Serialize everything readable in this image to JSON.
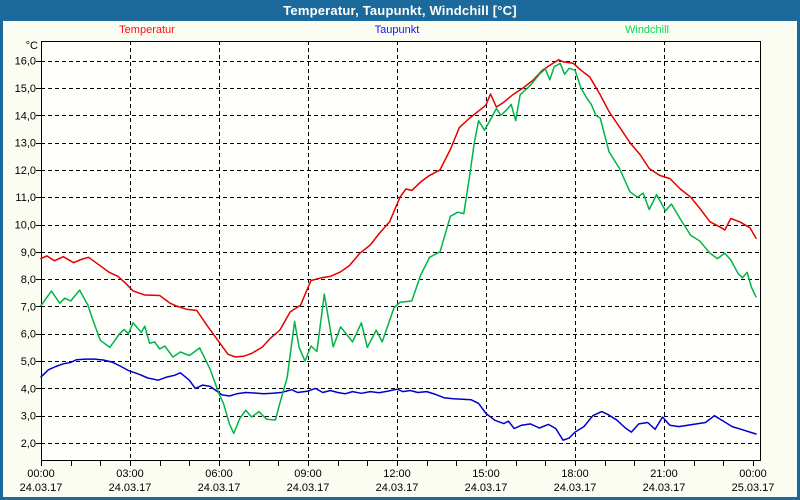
{
  "window": {
    "title": "Temperatur, Taupunkt, Windchill [°C]"
  },
  "colors": {
    "titlebar_bg": "#1c6a9c",
    "titlebar_text": "#ffffff",
    "frame": "#1c6a9c",
    "window_bg": "#fbfdf2",
    "plot_bg": "#fffffc",
    "grid": "#000000",
    "axis": "#000000"
  },
  "legend": {
    "items": [
      {
        "label": "Temperatur",
        "color": "#ff1010"
      },
      {
        "label": "Taupunkt",
        "color": "#1515ff"
      },
      {
        "label": "Windchill",
        "color": "#00dd55"
      }
    ]
  },
  "chart_data": {
    "type": "line",
    "title": "Temperatur, Taupunkt, Windchill [°C]",
    "unit_label": "°C",
    "grid": "dashed",
    "legend_position": "top",
    "y_axis": {
      "min": 1.34,
      "max": 16.72,
      "ticks": [
        {
          "value": 16,
          "label": "16,0"
        },
        {
          "value": 15,
          "label": "15,0"
        },
        {
          "value": 14,
          "label": "14,0"
        },
        {
          "value": 13,
          "label": "13,0"
        },
        {
          "value": 12,
          "label": "12,0"
        },
        {
          "value": 11,
          "label": "11,0"
        },
        {
          "value": 10,
          "label": "10,0"
        },
        {
          "value": 9,
          "label": "9,0"
        },
        {
          "value": 8,
          "label": "8,0"
        },
        {
          "value": 7,
          "label": "7,0"
        },
        {
          "value": 6,
          "label": "6,0"
        },
        {
          "value": 5,
          "label": "5,0"
        },
        {
          "value": 4,
          "label": "4,0"
        },
        {
          "value": 3,
          "label": "3,0"
        },
        {
          "value": 2,
          "label": "2,0"
        }
      ]
    },
    "x_axis": {
      "hours_span": 24.27,
      "minor_tick_every_hours": 1,
      "gridline_hours": [
        3,
        6,
        9,
        12,
        15,
        18,
        21
      ],
      "major_ticks": [
        {
          "hour": 0,
          "time": "00:00",
          "date": "24.03.17"
        },
        {
          "hour": 3,
          "time": "03:00",
          "date": "24.03.17"
        },
        {
          "hour": 6,
          "time": "06:00",
          "date": "24.03.17"
        },
        {
          "hour": 9,
          "time": "09:00",
          "date": "24.03.17"
        },
        {
          "hour": 12,
          "time": "12:00",
          "date": "24.03.17"
        },
        {
          "hour": 15,
          "time": "15:00",
          "date": "24.03.17"
        },
        {
          "hour": 18,
          "time": "18:00",
          "date": "24.03.17"
        },
        {
          "hour": 21,
          "time": "21:00",
          "date": "24.03.17"
        },
        {
          "hour": 24,
          "time": "00:00",
          "date": "25.03.17"
        }
      ]
    },
    "series": [
      {
        "name": "Temperatur",
        "color": "#e30000",
        "points": [
          [
            0,
            8.75
          ],
          [
            0.2,
            8.85
          ],
          [
            0.45,
            8.67
          ],
          [
            0.75,
            8.82
          ],
          [
            1.1,
            8.6
          ],
          [
            1.35,
            8.72
          ],
          [
            1.6,
            8.8
          ],
          [
            1.95,
            8.53
          ],
          [
            2.3,
            8.25
          ],
          [
            2.6,
            8.1
          ],
          [
            2.85,
            7.85
          ],
          [
            3.1,
            7.57
          ],
          [
            3.5,
            7.42
          ],
          [
            4,
            7.4
          ],
          [
            4.35,
            7.12
          ],
          [
            4.6,
            7
          ],
          [
            4.9,
            6.9
          ],
          [
            5.25,
            6.85
          ],
          [
            5.6,
            6.3
          ],
          [
            6,
            5.7
          ],
          [
            6.3,
            5.25
          ],
          [
            6.55,
            5.15
          ],
          [
            6.85,
            5.18
          ],
          [
            7.1,
            5.28
          ],
          [
            7.45,
            5.5
          ],
          [
            7.75,
            5.85
          ],
          [
            8.05,
            6.13
          ],
          [
            8.4,
            6.8
          ],
          [
            8.75,
            7.05
          ],
          [
            9.1,
            7.95
          ],
          [
            9.45,
            8.05
          ],
          [
            9.75,
            8.1
          ],
          [
            10.1,
            8.27
          ],
          [
            10.4,
            8.5
          ],
          [
            10.75,
            8.95
          ],
          [
            11.1,
            9.25
          ],
          [
            11.4,
            9.67
          ],
          [
            11.75,
            10.1
          ],
          [
            12.1,
            11
          ],
          [
            12.3,
            11.3
          ],
          [
            12.5,
            11.25
          ],
          [
            12.8,
            11.56
          ],
          [
            13.1,
            11.8
          ],
          [
            13.45,
            12
          ],
          [
            13.8,
            12.75
          ],
          [
            14.1,
            13.55
          ],
          [
            14.45,
            13.9
          ],
          [
            14.8,
            14.2
          ],
          [
            15,
            14.38
          ],
          [
            15.15,
            14.78
          ],
          [
            15.35,
            14.3
          ],
          [
            15.6,
            14.48
          ],
          [
            15.9,
            14.75
          ],
          [
            16.25,
            15
          ],
          [
            16.6,
            15.3
          ],
          [
            16.9,
            15.65
          ],
          [
            17.25,
            15.9
          ],
          [
            17.45,
            16.03
          ],
          [
            17.6,
            15.96
          ],
          [
            17.95,
            15.9
          ],
          [
            18.2,
            15.65
          ],
          [
            18.5,
            15.4
          ],
          [
            18.85,
            14.75
          ],
          [
            19.15,
            14.13
          ],
          [
            19.5,
            13.57
          ],
          [
            19.85,
            13
          ],
          [
            20.2,
            12.55
          ],
          [
            20.5,
            12.05
          ],
          [
            20.85,
            11.8
          ],
          [
            21.2,
            11.68
          ],
          [
            21.55,
            11.3
          ],
          [
            21.9,
            11
          ],
          [
            22.2,
            10.6
          ],
          [
            22.55,
            10.1
          ],
          [
            22.9,
            9.9
          ],
          [
            23.05,
            9.8
          ],
          [
            23.25,
            10.22
          ],
          [
            23.55,
            10.1
          ],
          [
            23.9,
            9.88
          ],
          [
            24.1,
            9.5
          ]
        ]
      },
      {
        "name": "Taupunkt",
        "color": "#0000cd",
        "points": [
          [
            0,
            4.42
          ],
          [
            0.25,
            4.68
          ],
          [
            0.5,
            4.8
          ],
          [
            0.75,
            4.9
          ],
          [
            1,
            4.95
          ],
          [
            1.2,
            5.05
          ],
          [
            1.5,
            5.07
          ],
          [
            1.8,
            5.07
          ],
          [
            2.1,
            5.04
          ],
          [
            2.4,
            4.96
          ],
          [
            2.7,
            4.8
          ],
          [
            2.95,
            4.65
          ],
          [
            3.3,
            4.52
          ],
          [
            3.6,
            4.38
          ],
          [
            3.95,
            4.3
          ],
          [
            4.2,
            4.4
          ],
          [
            4.5,
            4.48
          ],
          [
            4.7,
            4.57
          ],
          [
            5,
            4.3
          ],
          [
            5.2,
            4
          ],
          [
            5.45,
            4.12
          ],
          [
            5.7,
            4.07
          ],
          [
            5.95,
            3.88
          ],
          [
            6.1,
            3.76
          ],
          [
            6.35,
            3.72
          ],
          [
            6.6,
            3.8
          ],
          [
            6.9,
            3.85
          ],
          [
            7.2,
            3.83
          ],
          [
            7.5,
            3.8
          ],
          [
            7.8,
            3.82
          ],
          [
            8.1,
            3.85
          ],
          [
            8.45,
            3.95
          ],
          [
            8.65,
            3.85
          ],
          [
            9,
            3.9
          ],
          [
            9.25,
            4
          ],
          [
            9.5,
            3.85
          ],
          [
            9.75,
            3.92
          ],
          [
            10,
            3.85
          ],
          [
            10.25,
            3.8
          ],
          [
            10.5,
            3.88
          ],
          [
            10.8,
            3.82
          ],
          [
            11.1,
            3.88
          ],
          [
            11.4,
            3.84
          ],
          [
            11.7,
            3.9
          ],
          [
            12,
            3.97
          ],
          [
            12.2,
            3.88
          ],
          [
            12.45,
            3.92
          ],
          [
            12.7,
            3.85
          ],
          [
            13,
            3.88
          ],
          [
            13.3,
            3.78
          ],
          [
            13.6,
            3.65
          ],
          [
            13.9,
            3.62
          ],
          [
            14.2,
            3.6
          ],
          [
            14.5,
            3.58
          ],
          [
            14.75,
            3.45
          ],
          [
            15,
            3.08
          ],
          [
            15.3,
            2.83
          ],
          [
            15.6,
            2.71
          ],
          [
            15.75,
            2.8
          ],
          [
            15.95,
            2.53
          ],
          [
            16.2,
            2.65
          ],
          [
            16.5,
            2.7
          ],
          [
            16.8,
            2.55
          ],
          [
            17.1,
            2.68
          ],
          [
            17.35,
            2.53
          ],
          [
            17.6,
            2.1
          ],
          [
            17.8,
            2.18
          ],
          [
            18,
            2.4
          ],
          [
            18.3,
            2.6
          ],
          [
            18.6,
            3
          ],
          [
            18.9,
            3.15
          ],
          [
            19.1,
            3.05
          ],
          [
            19.4,
            2.85
          ],
          [
            19.7,
            2.55
          ],
          [
            19.9,
            2.4
          ],
          [
            20.15,
            2.7
          ],
          [
            20.45,
            2.75
          ],
          [
            20.7,
            2.5
          ],
          [
            20.95,
            2.95
          ],
          [
            21.2,
            2.65
          ],
          [
            21.5,
            2.6
          ],
          [
            21.8,
            2.65
          ],
          [
            22.1,
            2.7
          ],
          [
            22.4,
            2.75
          ],
          [
            22.7,
            3
          ],
          [
            23,
            2.8
          ],
          [
            23.3,
            2.6
          ],
          [
            23.6,
            2.5
          ],
          [
            23.9,
            2.4
          ],
          [
            24.1,
            2.33
          ]
        ]
      },
      {
        "name": "Windchill",
        "color": "#00b44a",
        "points": [
          [
            0,
            7.03
          ],
          [
            0.35,
            7.56
          ],
          [
            0.63,
            7.12
          ],
          [
            0.8,
            7.3
          ],
          [
            1,
            7.2
          ],
          [
            1.3,
            7.6
          ],
          [
            1.58,
            7.05
          ],
          [
            1.75,
            6.5
          ],
          [
            2,
            5.76
          ],
          [
            2.32,
            5.5
          ],
          [
            2.65,
            6
          ],
          [
            2.8,
            6.16
          ],
          [
            2.95,
            6
          ],
          [
            3.1,
            6.4
          ],
          [
            3.38,
            6.05
          ],
          [
            3.5,
            6.28
          ],
          [
            3.66,
            5.65
          ],
          [
            3.83,
            5.7
          ],
          [
            4,
            5.44
          ],
          [
            4.17,
            5.55
          ],
          [
            4.45,
            5.15
          ],
          [
            4.7,
            5.33
          ],
          [
            5,
            5.2
          ],
          [
            5.35,
            5.48
          ],
          [
            5.7,
            4.7
          ],
          [
            6,
            3.8
          ],
          [
            6.15,
            3.45
          ],
          [
            6.35,
            2.7
          ],
          [
            6.5,
            2.35
          ],
          [
            6.7,
            2.9
          ],
          [
            6.9,
            3.2
          ],
          [
            7.1,
            2.95
          ],
          [
            7.35,
            3.15
          ],
          [
            7.6,
            2.87
          ],
          [
            7.9,
            2.84
          ],
          [
            8.05,
            3.45
          ],
          [
            8.3,
            4.4
          ],
          [
            8.55,
            6.45
          ],
          [
            8.7,
            5.5
          ],
          [
            8.9,
            5
          ],
          [
            9.1,
            5.55
          ],
          [
            9.3,
            5.35
          ],
          [
            9.55,
            7.45
          ],
          [
            9.85,
            5.52
          ],
          [
            10.1,
            6.25
          ],
          [
            10.5,
            5.7
          ],
          [
            10.8,
            6.4
          ],
          [
            11,
            5.5
          ],
          [
            11.3,
            6.13
          ],
          [
            11.5,
            5.7
          ],
          [
            11.9,
            6.95
          ],
          [
            12.1,
            7.15
          ],
          [
            12.5,
            7.2
          ],
          [
            12.8,
            8.15
          ],
          [
            13.1,
            8.8
          ],
          [
            13.45,
            9
          ],
          [
            13.8,
            10.3
          ],
          [
            14.05,
            10.45
          ],
          [
            14.25,
            10.4
          ],
          [
            14.45,
            11.8
          ],
          [
            14.6,
            12.95
          ],
          [
            14.75,
            13.8
          ],
          [
            14.95,
            13.45
          ],
          [
            15.18,
            13.9
          ],
          [
            15.35,
            14.25
          ],
          [
            15.5,
            14
          ],
          [
            15.7,
            14.2
          ],
          [
            15.85,
            14.4
          ],
          [
            16,
            13.8
          ],
          [
            16.15,
            14.75
          ],
          [
            16.5,
            15.1
          ],
          [
            16.8,
            15.5
          ],
          [
            17,
            15.7
          ],
          [
            17.15,
            15.3
          ],
          [
            17.3,
            15.78
          ],
          [
            17.5,
            15.9
          ],
          [
            17.65,
            15.5
          ],
          [
            17.8,
            15.72
          ],
          [
            18,
            15.65
          ],
          [
            18.2,
            15
          ],
          [
            18.4,
            14.62
          ],
          [
            18.55,
            14.4
          ],
          [
            18.7,
            14
          ],
          [
            18.85,
            13.9
          ],
          [
            19.15,
            12.66
          ],
          [
            19.5,
            12.05
          ],
          [
            19.85,
            11.2
          ],
          [
            20.1,
            11
          ],
          [
            20.3,
            11.15
          ],
          [
            20.5,
            10.55
          ],
          [
            20.75,
            11.1
          ],
          [
            21.05,
            10.5
          ],
          [
            21.25,
            10.75
          ],
          [
            21.55,
            10.2
          ],
          [
            21.9,
            9.6
          ],
          [
            22.2,
            9.4
          ],
          [
            22.55,
            8.95
          ],
          [
            22.8,
            8.75
          ],
          [
            23.05,
            8.95
          ],
          [
            23.25,
            8.7
          ],
          [
            23.5,
            8.2
          ],
          [
            23.65,
            8.05
          ],
          [
            23.8,
            8.25
          ],
          [
            23.95,
            7.7
          ],
          [
            24.1,
            7.35
          ]
        ]
      }
    ]
  }
}
